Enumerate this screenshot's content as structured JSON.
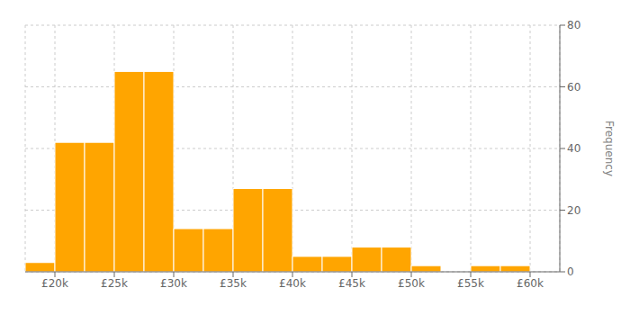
{
  "chart_data": {
    "type": "histogram",
    "bins": [
      17500,
      20000,
      22500,
      25000,
      27500,
      30000,
      32500,
      35000,
      37500,
      40000,
      42500,
      45000,
      47500,
      50000,
      52500,
      55000,
      57500,
      60000,
      62500
    ],
    "values": [
      3,
      42,
      42,
      65,
      65,
      14,
      14,
      27,
      27,
      5,
      5,
      8,
      8,
      2,
      0,
      2,
      2,
      0
    ],
    "color": "#FFA500",
    "xlim": [
      17500,
      62500
    ],
    "xticks": [
      {
        "value": 20000,
        "label": "£20k"
      },
      {
        "value": 25000,
        "label": "£25k"
      },
      {
        "value": 30000,
        "label": "£30k"
      },
      {
        "value": 35000,
        "label": "£35k"
      },
      {
        "value": 40000,
        "label": "£40k"
      },
      {
        "value": 45000,
        "label": "£45k"
      },
      {
        "value": 50000,
        "label": "£50k"
      },
      {
        "value": 55000,
        "label": "£55k"
      },
      {
        "value": 60000,
        "label": "£60k"
      }
    ],
    "ylim": [
      0,
      80
    ],
    "yticks": [
      0,
      20,
      40,
      60,
      80
    ],
    "ylabel": "Frequency",
    "grid": true
  }
}
